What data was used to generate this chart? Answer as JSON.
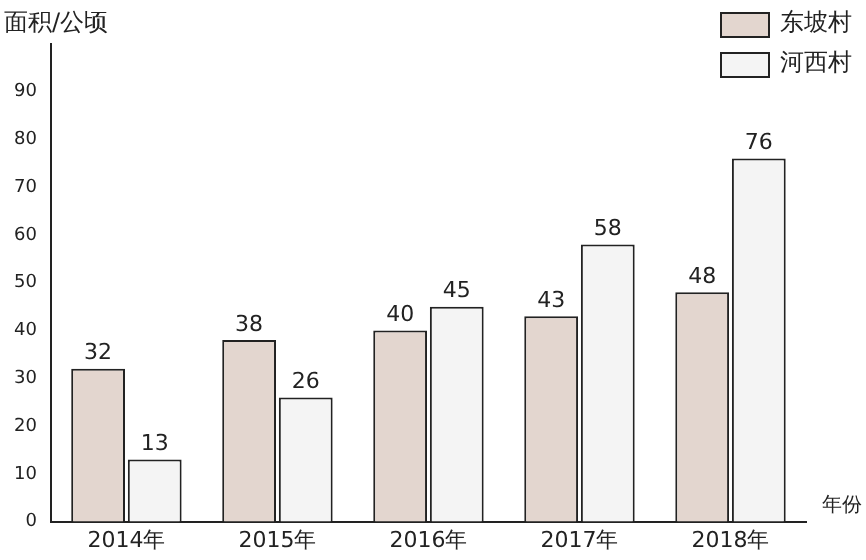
{
  "chart_data": {
    "type": "bar",
    "ylabel": "面积/公顷",
    "xlabel": "年份",
    "categories": [
      "2014年",
      "2015年",
      "2016年",
      "2017年",
      "2018年"
    ],
    "series": [
      {
        "name": "东坡村",
        "color": "#e3d6cf",
        "values": [
          32,
          38,
          40,
          43,
          48
        ]
      },
      {
        "name": "河西村",
        "color": "#f4f4f4",
        "values": [
          13,
          26,
          45,
          58,
          76
        ]
      }
    ],
    "ylim": [
      0,
      100
    ],
    "yticks": [
      0,
      10,
      20,
      30,
      40,
      50,
      60,
      70,
      80,
      90
    ],
    "grid": false,
    "legend": "top right",
    "data_labels": true
  }
}
